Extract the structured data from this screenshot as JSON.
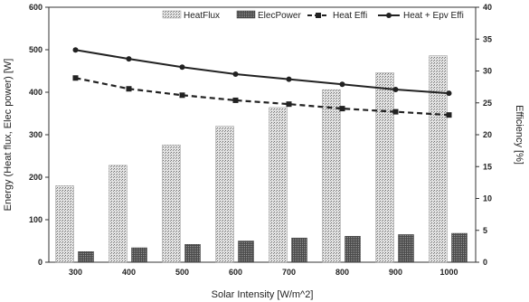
{
  "chart_data": {
    "type": "bar",
    "categories": [
      "300",
      "400",
      "500",
      "600",
      "700",
      "800",
      "900",
      "1000"
    ],
    "series": [
      {
        "name": "HeatFlux",
        "type": "bar",
        "axis": "left",
        "color": "#b9b9b9",
        "values": [
          180,
          228,
          276,
          320,
          364,
          406,
          446,
          486
        ]
      },
      {
        "name": "ElecPower",
        "type": "bar",
        "axis": "left",
        "color": "#5a5a5a",
        "values": [
          25,
          34,
          42,
          50,
          57,
          61,
          65,
          68
        ]
      },
      {
        "name": "Heat Effi",
        "type": "line",
        "axis": "right",
        "style": "dashed",
        "marker": "square",
        "color": "#222222",
        "values": [
          28.9,
          27.2,
          26.2,
          25.4,
          24.8,
          24.1,
          23.6,
          23.1
        ]
      },
      {
        "name": "Heat + Epv Effi",
        "type": "line",
        "axis": "right",
        "style": "solid",
        "marker": "circle",
        "color": "#222222",
        "values": [
          33.3,
          31.9,
          30.6,
          29.5,
          28.7,
          27.9,
          27.1,
          26.5
        ]
      }
    ],
    "xlabel": "Solar Intensity [W/m^2]",
    "ylabel": "Energy (Heat flux, Elec power) [W]",
    "y2label": "Efficiency [%]",
    "ylim": [
      0,
      600
    ],
    "yticks": [
      "0",
      "100",
      "200",
      "300",
      "400",
      "500",
      "600"
    ],
    "y2lim": [
      0,
      40
    ],
    "y2ticks": [
      "0",
      "5",
      "10",
      "15",
      "20",
      "25",
      "30",
      "35",
      "40"
    ],
    "grid": false,
    "legend": "top"
  }
}
